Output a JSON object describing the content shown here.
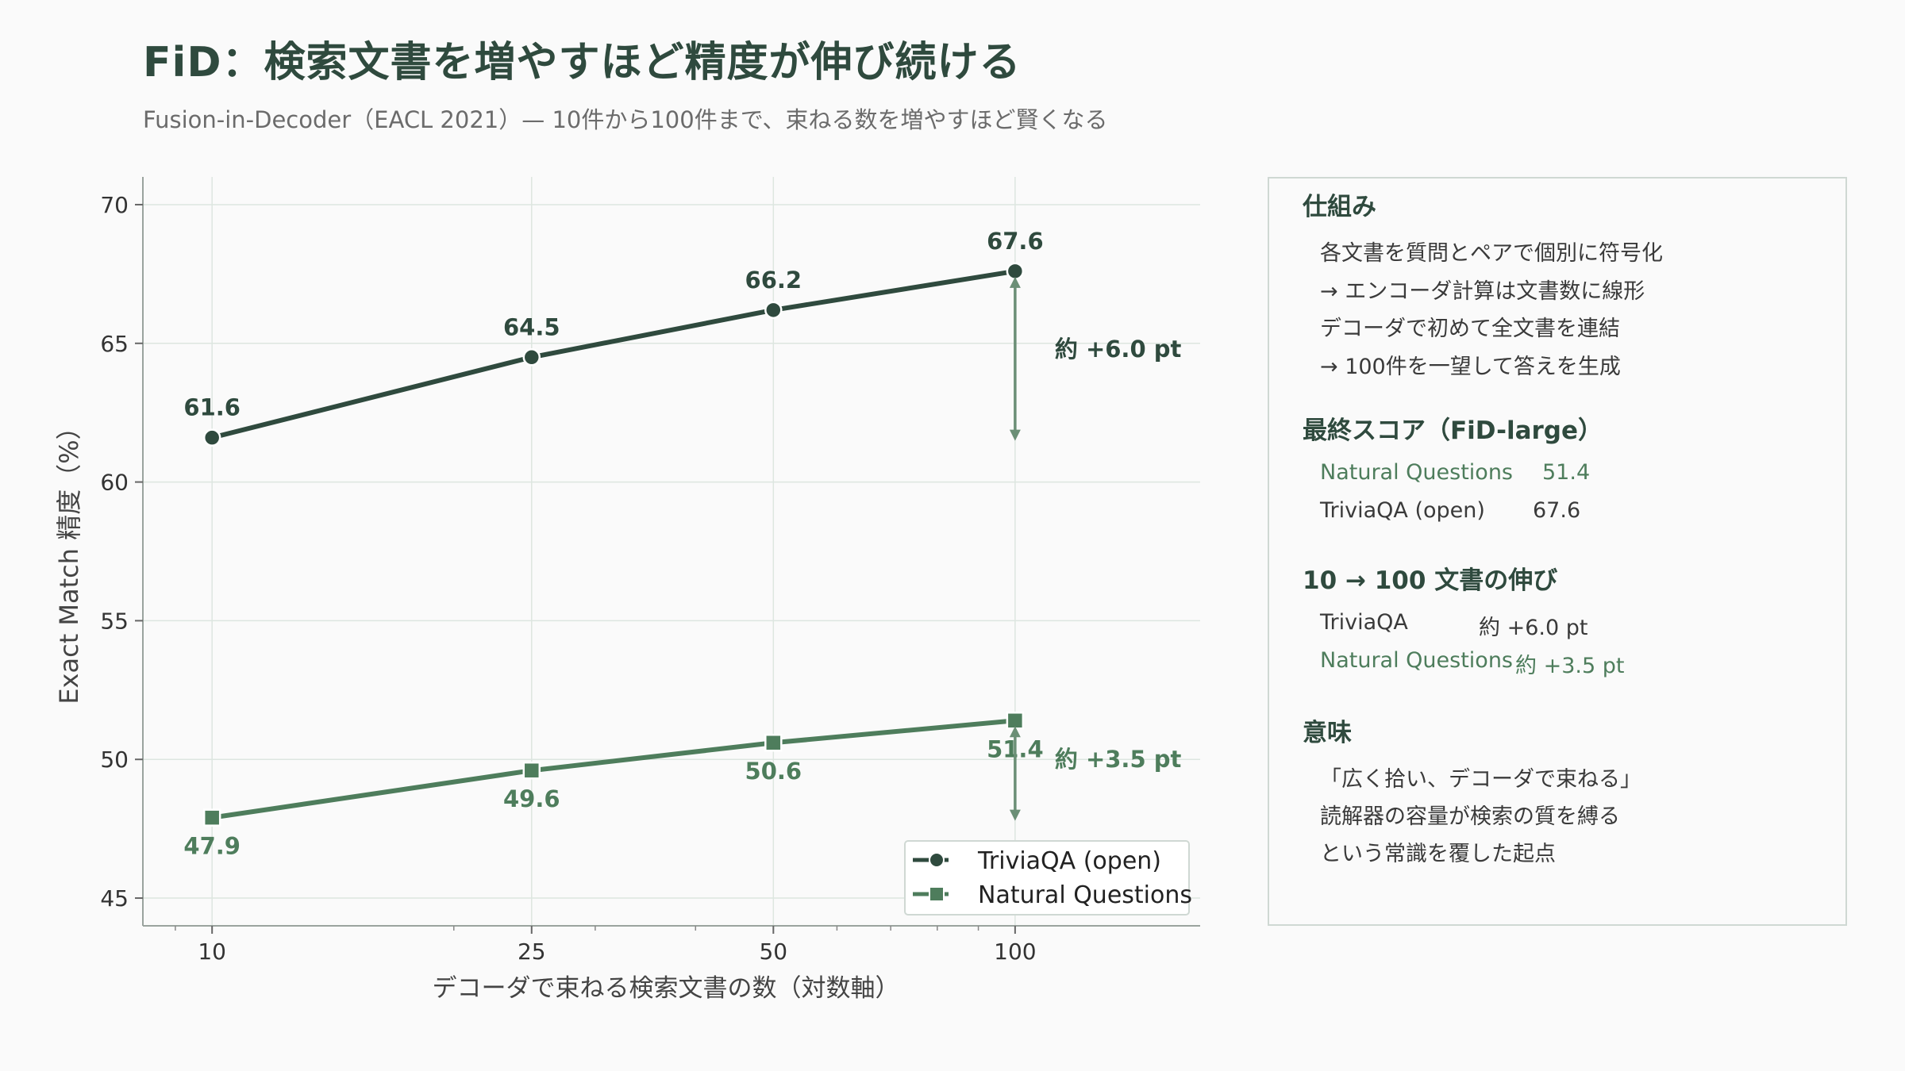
{
  "header": {
    "title": "FiD：検索文書を増やすほど精度が伸び続ける",
    "subtitle": "Fusion-in-Decoder（EACL 2021）— 10件から100件まで、束ねる数を増やすほど賢くなる"
  },
  "colors": {
    "trivia": "#2f4a3e",
    "nq": "#4e7d5c",
    "grid": "#dde6e0",
    "panel_border": "#cfd8d3"
  },
  "chart_data": {
    "type": "line",
    "x_scale": "log",
    "x": [
      10,
      25,
      50,
      100
    ],
    "xlim": [
      8.2,
      170
    ],
    "ylim": [
      44.0,
      71.0
    ],
    "xticks": [
      10,
      25,
      50,
      100
    ],
    "yticks": [
      45,
      50,
      55,
      60,
      65,
      70
    ],
    "xlabel": "デコーダで束ねる検索文書の数（対数軸）",
    "ylabel": "Exact Match 精度（%）",
    "grid": true,
    "legend_position": "bottom-right",
    "series": [
      {
        "name": "TriviaQA (open)",
        "values": [
          61.6,
          64.5,
          66.2,
          67.6
        ],
        "labels": [
          "61.6",
          "64.5",
          "66.2",
          "67.6"
        ],
        "marker": "circle",
        "color": "#2f4a3e",
        "label_position": "above"
      },
      {
        "name": "Natural Questions",
        "values": [
          47.9,
          49.6,
          50.6,
          51.4
        ],
        "labels": [
          "47.9",
          "49.6",
          "50.6",
          "51.4"
        ],
        "marker": "square",
        "color": "#4e7d5c",
        "label_position": "below"
      }
    ],
    "annotations": [
      {
        "text": "約 +6.0 pt",
        "from": 61.6,
        "to": 67.6,
        "color": "#2f4a3e"
      },
      {
        "text": "約 +3.5 pt",
        "from": 47.9,
        "to": 51.4,
        "color": "#4e7d5c"
      }
    ]
  },
  "panel": {
    "mechanism": {
      "title": "仕組み",
      "lines": [
        "各文書を質問とペアで個別に符号化",
        "→ エンコーダ計算は文書数に線形",
        "デコーダで初めて全文書を連結",
        "→ 100件を一望して答えを生成"
      ]
    },
    "final": {
      "title": "最終スコア（FiD-large）",
      "rows": [
        {
          "name": "Natural Questions",
          "value": "51.4"
        },
        {
          "name": "TriviaQA (open)",
          "value": "67.6"
        }
      ]
    },
    "growth": {
      "title": "10 → 100 文書の伸び",
      "rows": [
        {
          "name": "TriviaQA",
          "value": "約 +6.0 pt"
        },
        {
          "name": "Natural Questions",
          "value": "約 +3.5 pt"
        }
      ]
    },
    "meaning": {
      "title": "意味",
      "lines": [
        "「広く拾い、デコーダで束ねる」",
        "読解器の容量が検索の質を縛る",
        "という常識を覆した起点"
      ]
    }
  }
}
